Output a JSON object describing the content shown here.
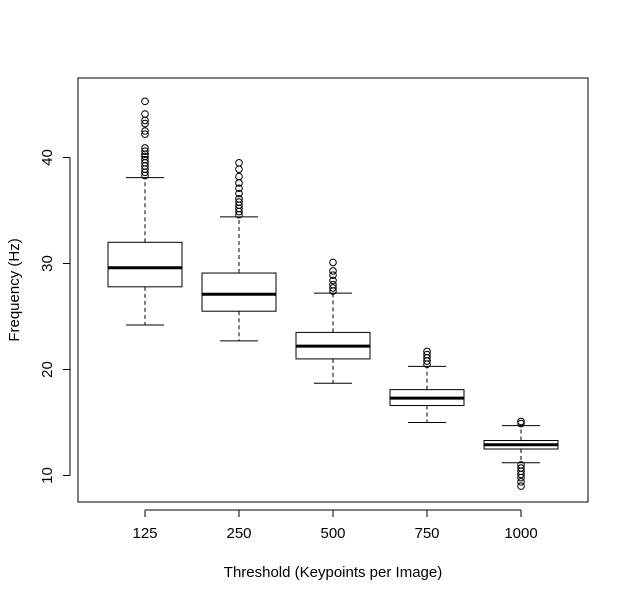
{
  "chart_data": {
    "type": "boxplot",
    "title": "",
    "xlabel": "Threshold (Keypoints per Image)",
    "ylabel": "Frequency (Hz)",
    "ylim": [
      7.5,
      47.5
    ],
    "y_ticks": [
      10,
      20,
      30,
      40
    ],
    "categories": [
      "125",
      "250",
      "500",
      "750",
      "1000"
    ],
    "boxes": [
      {
        "category": "125",
        "whisker_low": 24.2,
        "q1": 27.8,
        "median": 29.6,
        "q3": 32.0,
        "whisker_high": 38.1,
        "outliers": [
          38.3,
          38.6,
          38.9,
          39.2,
          39.5,
          39.8,
          40.1,
          40.3,
          40.6,
          40.9,
          42.2,
          42.5,
          43.2,
          43.5,
          44.1,
          45.3
        ]
      },
      {
        "category": "250",
        "whisker_low": 22.7,
        "q1": 25.5,
        "median": 27.1,
        "q3": 29.1,
        "whisker_high": 34.4,
        "outliers": [
          34.6,
          34.9,
          35.2,
          35.5,
          35.8,
          36.1,
          36.6,
          37.1,
          37.6,
          38.2,
          38.9,
          39.5
        ]
      },
      {
        "category": "500",
        "whisker_low": 18.7,
        "q1": 21.0,
        "median": 22.2,
        "q3": 23.5,
        "whisker_high": 27.2,
        "outliers": [
          27.4,
          27.7,
          28.0,
          28.4,
          28.9,
          29.3,
          30.1
        ]
      },
      {
        "category": "750",
        "whisker_low": 15.0,
        "q1": 16.6,
        "median": 17.3,
        "q3": 18.1,
        "whisker_high": 20.3,
        "outliers": [
          20.5,
          20.8,
          21.1,
          21.4,
          21.7
        ]
      },
      {
        "category": "1000",
        "whisker_low": 11.2,
        "q1": 12.5,
        "median": 12.9,
        "q3": 13.3,
        "whisker_high": 14.7,
        "outliers": [
          14.9,
          15.1,
          11.0,
          10.7,
          10.4,
          10.1,
          9.8,
          9.4,
          9.0
        ]
      }
    ],
    "grid": false,
    "legend": "none",
    "colors": {
      "box_fill": "#ffffff",
      "stroke": "#000000"
    }
  }
}
